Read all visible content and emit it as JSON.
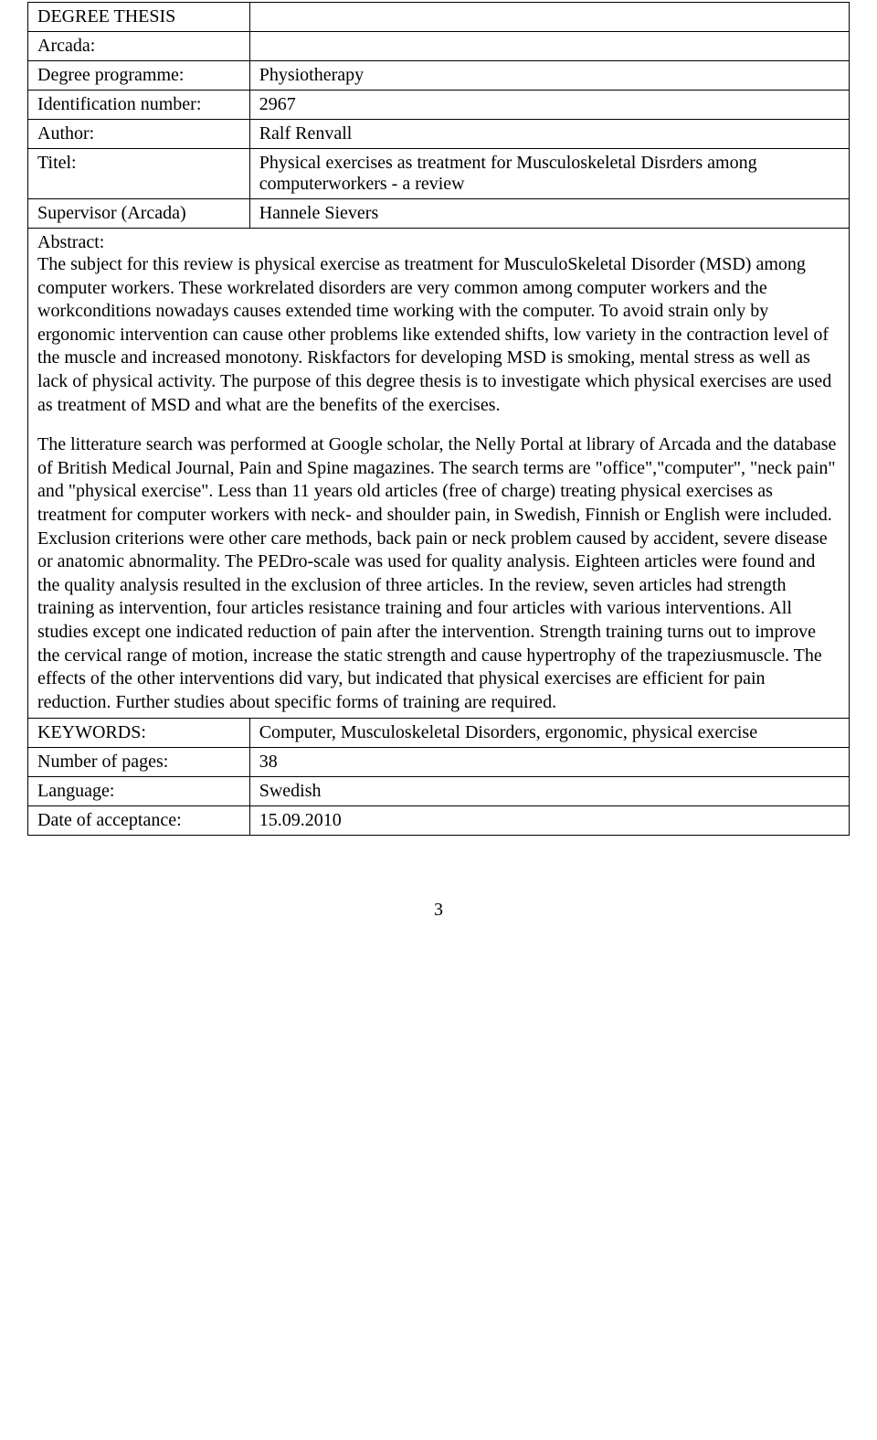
{
  "header": {
    "document_type": "DEGREE THESIS"
  },
  "fields": {
    "arcada_label": "Arcada:",
    "degree_programme_label": "Degree programme:",
    "degree_programme_value": "Physiotherapy",
    "identification_number_label": "Identification number:",
    "identification_number_value": "2967",
    "author_label": "Author:",
    "author_value": "Ralf Renvall",
    "titel_label": "Titel:",
    "titel_value": "Physical exercises as treatment for Musculoskeletal Disrders among computerworkers - a review",
    "supervisor_label": "Supervisor (Arcada)",
    "supervisor_value": "Hannele Sievers",
    "abstract_label": "Abstract:",
    "abstract_para1": "The subject for this review is physical exercise as treatment for MusculoSkeletal Disorder (MSD) among computer workers. These workrelated disorders are very common among computer workers and the workconditions nowadays causes extended time working with the computer. To avoid strain only by ergonomic intervention can cause other problems like extended shifts, low variety in the contraction level of the muscle and increased monotony. Riskfactors for developing MSD is smoking, mental stress as well as lack of physical activity. The purpose of this degree thesis is to investigate which physical exercises are used as treatment of MSD and what are the benefits of the exercises.",
    "abstract_para2": "The litterature search was performed at Google scholar, the Nelly Portal at library of Arcada and the database of British Medical Journal, Pain and Spine magazines. The search terms are \"office\",\"computer\", \"neck pain\" and \"physical exercise\". Less than 11 years old articles (free of charge) treating physical exercises as treatment for computer workers with neck- and shoulder pain, in Swedish, Finnish or English were included. Exclusion criterions were other care methods, back pain or neck problem caused by accident, severe disease or anatomic abnormality. The PEDro-scale was used for quality analysis. Eighteen articles were found and the quality analysis resulted in the exclusion of three articles. In the review, seven articles had strength training as intervention, four articles resistance training and four articles with various interventions. All studies except one indicated reduction of pain after the intervention. Strength training turns out to improve the cervical range of motion, increase the static strength and cause hypertrophy of the trapeziusmuscle. The effects of the other interventions did vary, but indicated that physical exercises are efficient for pain reduction. Further studies about specific forms of training are required.",
    "keywords_label": "KEYWORDS:",
    "keywords_value": "Computer, Musculoskeletal Disorders, ergonomic, physical exercise",
    "pages_label": "Number of pages:",
    "pages_value": "38",
    "language_label": "Language:",
    "language_value": "Swedish",
    "date_label": "Date of acceptance:",
    "date_value": "15.09.2010"
  },
  "page_number": "3"
}
